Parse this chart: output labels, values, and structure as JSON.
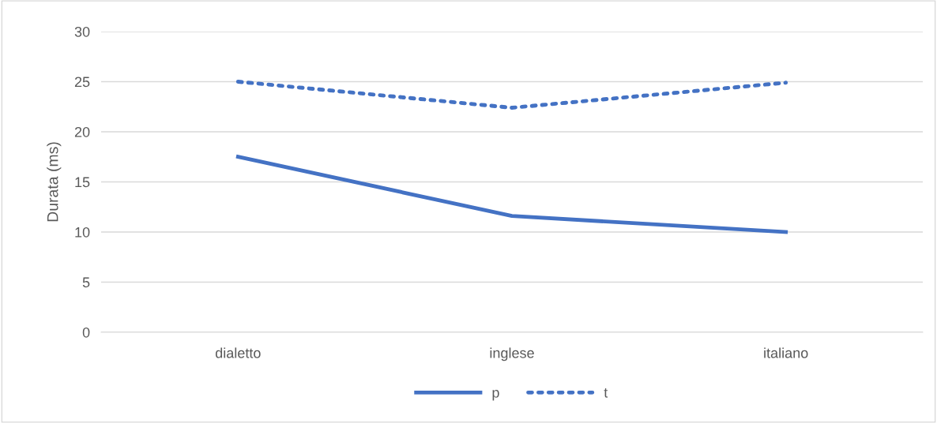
{
  "chart_data": {
    "type": "line",
    "ylabel": "Durata (ms)",
    "categories": [
      "dialetto",
      "inglese",
      "italiano"
    ],
    "series": [
      {
        "name": "p",
        "color": "#4472c4",
        "values": [
          17.5,
          11.6,
          10.0
        ],
        "line_style": "solid"
      },
      {
        "name": "t",
        "color": "#4472c4",
        "values": [
          25.0,
          22.4,
          24.9
        ],
        "line_style": "dotted"
      }
    ],
    "ylim": [
      0,
      30
    ],
    "yticks": [
      0,
      5,
      10,
      15,
      20,
      25,
      30
    ],
    "grid": "y",
    "legend": "bottom",
    "marker": "none"
  }
}
